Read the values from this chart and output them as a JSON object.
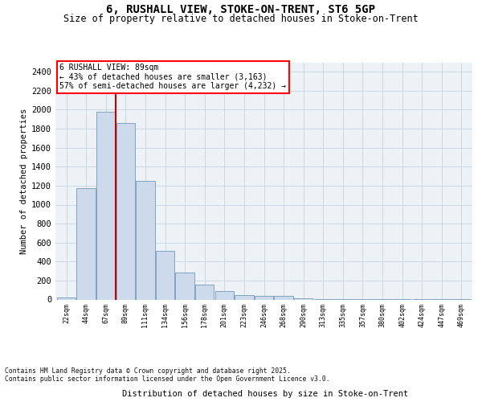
{
  "title_line1": "6, RUSHALL VIEW, STOKE-ON-TRENT, ST6 5GP",
  "title_line2": "Size of property relative to detached houses in Stoke-on-Trent",
  "xlabel": "Distribution of detached houses by size in Stoke-on-Trent",
  "ylabel": "Number of detached properties",
  "categories": [
    "22sqm",
    "44sqm",
    "67sqm",
    "89sqm",
    "111sqm",
    "134sqm",
    "156sqm",
    "178sqm",
    "201sqm",
    "223sqm",
    "246sqm",
    "268sqm",
    "290sqm",
    "313sqm",
    "335sqm",
    "357sqm",
    "380sqm",
    "402sqm",
    "424sqm",
    "447sqm",
    "469sqm"
  ],
  "values": [
    25,
    1170,
    1980,
    1860,
    1250,
    515,
    280,
    160,
    90,
    50,
    35,
    35,
    10,
    5,
    5,
    5,
    5,
    5,
    5,
    5,
    5
  ],
  "bar_color": "#ccdaeb",
  "bar_edge_color": "#7099bb",
  "vline_color": "#cc0000",
  "vline_index": 2.5,
  "annotation_line1": "6 RUSHALL VIEW: 89sqm",
  "annotation_line2": "← 43% of detached houses are smaller (3,163)",
  "annotation_line3": "57% of semi-detached houses are larger (4,232) →",
  "ylim_max": 2500,
  "yticks": [
    0,
    200,
    400,
    600,
    800,
    1000,
    1200,
    1400,
    1600,
    1800,
    2000,
    2200,
    2400
  ],
  "grid_color": "#c8d4e0",
  "bg_color": "#edf2f7",
  "title_fontsize": 10,
  "subtitle_fontsize": 8.5,
  "footnote_line1": "Contains HM Land Registry data © Crown copyright and database right 2025.",
  "footnote_line2": "Contains public sector information licensed under the Open Government Licence v3.0."
}
